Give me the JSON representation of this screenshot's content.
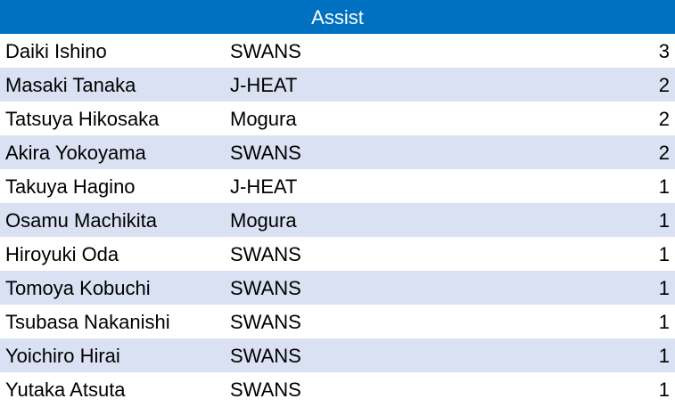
{
  "header": {
    "title": "Assist"
  },
  "rows": [
    {
      "name": "Daiki Ishino",
      "team": "SWANS",
      "count": "3"
    },
    {
      "name": "Masaki Tanaka",
      "team": "J-HEAT",
      "count": "2"
    },
    {
      "name": "Tatsuya Hikosaka",
      "team": "Mogura",
      "count": "2"
    },
    {
      "name": "Akira Yokoyama",
      "team": "SWANS",
      "count": "2"
    },
    {
      "name": "Takuya Hagino",
      "team": "J-HEAT",
      "count": "1"
    },
    {
      "name": "Osamu Machikita",
      "team": "Mogura",
      "count": "1"
    },
    {
      "name": "Hiroyuki Oda",
      "team": "SWANS",
      "count": "1"
    },
    {
      "name": "Tomoya Kobuchi",
      "team": "SWANS",
      "count": "1"
    },
    {
      "name": "Tsubasa Nakanishi",
      "team": "SWANS",
      "count": "1"
    },
    {
      "name": "Yoichiro Hirai",
      "team": "SWANS",
      "count": "1"
    },
    {
      "name": "Yutaka Atsuta",
      "team": "SWANS",
      "count": "1"
    }
  ],
  "colors": {
    "header_bg": "#0070c0",
    "header_text": "#ffffff",
    "stripe": "#d9e1f2",
    "background": "#ffffff"
  }
}
